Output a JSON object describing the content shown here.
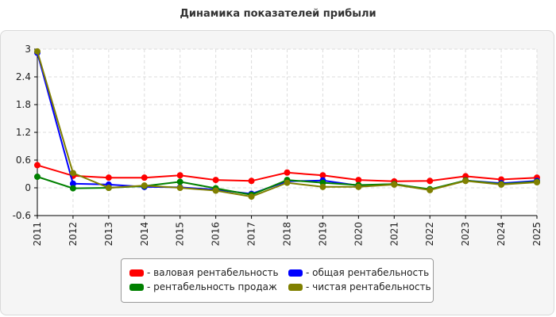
{
  "chart_data": {
    "type": "line",
    "title": "Динамика показателей прибыли",
    "xlabel": "",
    "ylabel": "",
    "ylim": [
      -0.6,
      3
    ],
    "yticks": [
      "3",
      "2.4",
      "1.8",
      "1.2",
      "0.6",
      "0",
      "-0.6"
    ],
    "categories": [
      "2011",
      "2012",
      "2013",
      "2014",
      "2015",
      "2016",
      "2017",
      "2018",
      "2019",
      "2020",
      "2021",
      "2022",
      "2023",
      "2024",
      "2025"
    ],
    "grid": true,
    "legend_position": "bottom",
    "series": [
      {
        "name": "- валовая рентабельность",
        "color": "#ff0000",
        "values": [
          0.49,
          0.26,
          0.22,
          0.22,
          0.27,
          0.17,
          0.15,
          0.33,
          0.27,
          0.17,
          0.14,
          0.15,
          0.25,
          0.18,
          0.22
        ]
      },
      {
        "name": "- общая рентабельность",
        "color": "#0000ff",
        "values": [
          2.92,
          0.09,
          0.07,
          0.02,
          0.01,
          -0.04,
          -0.13,
          0.14,
          0.16,
          0.05,
          0.08,
          -0.04,
          0.16,
          0.1,
          0.15
        ]
      },
      {
        "name": "- рентабельность продаж",
        "color": "#008000",
        "values": [
          0.24,
          -0.01,
          0.0,
          0.04,
          0.13,
          -0.01,
          -0.15,
          0.17,
          0.11,
          0.06,
          0.08,
          -0.03,
          0.16,
          0.08,
          0.13
        ]
      },
      {
        "name": "- чистая рентабельность",
        "color": "#808000",
        "values": [
          2.95,
          0.32,
          0.0,
          0.05,
          0.0,
          -0.06,
          -0.19,
          0.11,
          0.02,
          0.02,
          0.07,
          -0.05,
          0.15,
          0.07,
          0.12
        ]
      }
    ]
  }
}
